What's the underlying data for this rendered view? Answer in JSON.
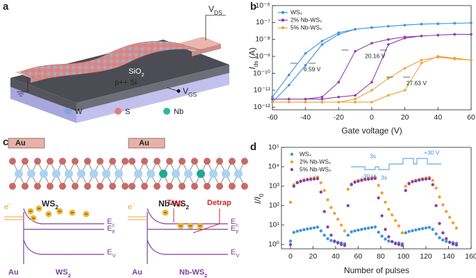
{
  "panel_labels": [
    "a",
    "b",
    "c",
    "d"
  ],
  "device": {
    "v_ds": {
      "main": "V",
      "sub": "DS"
    },
    "oxide": {
      "main": "SiO",
      "sub": "2"
    },
    "substrate": "p++ Si",
    "v_gs": {
      "main": "V",
      "sub": "GS"
    },
    "legend": [
      "W",
      "S",
      "Nb"
    ]
  },
  "panel_c": {
    "lattice": [
      {
        "electrode": "Au",
        "name": {
          "main": "WS",
          "sub": "2"
        }
      },
      {
        "electrode": "Au",
        "name": {
          "main": "Nb-WS",
          "sub": "2"
        }
      }
    ],
    "bands": [
      {
        "electron": {
          "main": "e",
          "sup": "−"
        },
        "levels": [
          {
            "main": "E",
            "sub": "c"
          },
          {
            "main": "E",
            "sub": "F"
          },
          {
            "main": "E",
            "sub": "V"
          }
        ],
        "metal": "Au",
        "semiconductor": {
          "main": "WS",
          "sub": "2"
        }
      },
      {
        "electron": {
          "main": "e",
          "sup": "−"
        },
        "levels": [
          {
            "main": "E",
            "sub": "c"
          },
          {
            "main": "E",
            "sub": "F"
          },
          {
            "main": "E",
            "sub": "V"
          }
        ],
        "metal": "Au",
        "semiconductor": {
          "main": "Nb-WS",
          "sub": "2"
        },
        "trap": "Trap",
        "detrap": "Detrap"
      }
    ]
  },
  "chart_data": [
    {
      "type": "line",
      "xlabel": "Gate voltage (V)",
      "ylabel": {
        "main": "I",
        "sub": "ds",
        "unit": " (A)"
      },
      "log_y": true,
      "legend": "upper left",
      "xlim": [
        -60,
        60
      ],
      "xticks": [
        -60,
        -40,
        -20,
        0,
        20,
        40,
        60
      ],
      "ylim": [
        7e-13,
        1e-06
      ],
      "yticks": [
        {
          "value": 1e-12,
          "label": "10⁻¹²"
        },
        {
          "value": 1e-11,
          "label": "10⁻¹¹"
        },
        {
          "value": 1e-10,
          "label": "10⁻¹⁰"
        },
        {
          "value": 1e-09,
          "label": "10⁻⁹"
        },
        {
          "value": 1e-08,
          "label": "10⁻⁸"
        },
        {
          "value": 1e-07,
          "label": "10⁻⁷"
        },
        {
          "value": 1e-06,
          "label": "10⁻⁶"
        }
      ],
      "x": [
        -60,
        -50,
        -40,
        -30,
        -20,
        -10,
        0,
        10,
        20,
        30,
        40,
        50,
        60,
        50,
        40,
        30,
        20,
        10,
        0,
        -10,
        -20,
        -30,
        -40,
        -50,
        -60
      ],
      "series": [
        {
          "name": "WS₂",
          "color": "#3d93dc",
          "values": [
            2e-12,
            2e-11,
            3e-10,
            5e-09,
            2e-08,
            4e-08,
            5e-08,
            6e-08,
            7e-08,
            8e-08,
            8.5e-08,
            9e-08,
            9.5e-08,
            9e-08,
            8.5e-08,
            8e-08,
            7e-08,
            6e-08,
            5e-08,
            4e-08,
            2.5e-08,
            8e-09,
            1.5e-09,
            8e-11,
            4e-12
          ]
        },
        {
          "name": "2% Nb-WS₂",
          "color": "#8b3fae",
          "values": [
            3e-12,
            3e-12,
            3e-12,
            3e-12,
            4e-12,
            5e-12,
            3e-11,
            5e-09,
            1.2e-08,
            1.6e-08,
            1.8e-08,
            2e-08,
            2e-08,
            2e-08,
            1.8e-08,
            1.6e-08,
            1.4e-08,
            1e-08,
            6e-09,
            2e-09,
            3e-11,
            4e-12,
            3e-12,
            3e-12,
            3e-12
          ]
        },
        {
          "name": "5% Nb-WS₂",
          "color": "#eea232",
          "values": [
            2e-12,
            2e-12,
            2e-12,
            2e-12,
            2e-12,
            2e-12,
            2e-12,
            5e-12,
            1e-11,
            4e-10,
            1e-09,
            8e-10,
            6e-10,
            7e-10,
            9e-10,
            6e-10,
            2e-10,
            5e-11,
            1e-11,
            3e-12,
            2e-12,
            2e-12,
            2e-12,
            2e-12,
            2e-12
          ]
        }
      ],
      "annotations": [
        "6.59 V",
        "20.16 V",
        "27.63 V"
      ]
    },
    {
      "type": "scatter",
      "xlabel": "Number of pulses",
      "ylabel": {
        "main": "I/I",
        "sub": "0"
      },
      "log_y": true,
      "legend": "upper left",
      "xlim": [
        -8,
        160
      ],
      "xticks": [
        0,
        20,
        40,
        60,
        80,
        100,
        120,
        140,
        160
      ],
      "ylim": [
        0.6,
        100000
      ],
      "yticks": [
        {
          "value": 1,
          "label": "10⁰"
        },
        {
          "value": 10,
          "label": "10¹"
        },
        {
          "value": 100,
          "label": "10²"
        },
        {
          "value": 1000,
          "label": "10³"
        },
        {
          "value": 10000,
          "label": "10⁴"
        },
        {
          "value": 100000,
          "label": "10⁵"
        }
      ],
      "x": [
        0,
        3,
        6,
        9,
        12,
        15,
        18,
        21,
        24,
        27,
        30,
        33,
        36,
        39,
        42,
        45,
        48,
        51,
        54,
        57,
        60,
        63,
        66,
        69,
        72,
        75,
        78,
        81,
        84,
        87,
        90,
        93,
        96,
        99,
        102,
        105,
        108,
        111,
        114,
        117,
        120,
        123,
        126,
        129,
        132,
        135,
        138,
        141,
        144,
        147
      ],
      "series": [
        {
          "name": "WS₂",
          "color": "#3d93dc",
          "values": [
            1.5,
            4.2,
            4.8,
            5.3,
            5.8,
            6.3,
            6.8,
            7.3,
            7.8,
            5,
            3,
            2,
            1.6,
            1.4,
            1.3,
            1.2,
            1.1,
            3,
            4.5,
            5,
            5.5,
            6,
            6.5,
            7,
            7.5,
            8,
            4.3,
            2.7,
            1.9,
            1.5,
            1.4,
            1.2,
            1.2,
            1.1,
            4,
            4.7,
            5.1,
            5.6,
            6.1,
            6.6,
            7.1,
            7.6,
            6,
            3.5,
            2.2,
            1.7,
            1.45,
            1.3,
            1.25,
            1.15
          ]
        },
        {
          "name": "2% Nb-WS₂",
          "color": "#eea232",
          "values": [
            150,
            1200,
            1600,
            1900,
            2150,
            2350,
            2550,
            2750,
            2950,
            1500,
            600,
            200,
            80,
            40,
            20,
            10,
            5,
            700,
            1300,
            1700,
            2000,
            2200,
            2400,
            2600,
            2800,
            3000,
            1100,
            450,
            150,
            65,
            33,
            17,
            9,
            4,
            1000,
            1450,
            1800,
            2050,
            2250,
            2450,
            2650,
            2850,
            2000,
            800,
            280,
            110,
            50,
            25,
            13,
            7
          ]
        },
        {
          "name": "5% Nb-WS₂",
          "color": "#8b3fae",
          "values": [
            1,
            1000,
            1500,
            1750,
            1950,
            2150,
            2250,
            2350,
            2450,
            500,
            50,
            8,
            3,
            1.5,
            1.2,
            1,
            0.9,
            100,
            1200,
            1600,
            1800,
            2000,
            2200,
            2300,
            2400,
            2500,
            250,
            30,
            6,
            2.5,
            1.4,
            1.1,
            1,
            0.9,
            600,
            1350,
            1700,
            1850,
            2050,
            2250,
            2350,
            2450,
            1200,
            100,
            12,
            4,
            2,
            1.3,
            1.05,
            0.95
          ]
        }
      ],
      "inset": [
        "3s",
        "-30 V",
        "3s",
        "+30 V"
      ]
    }
  ]
}
